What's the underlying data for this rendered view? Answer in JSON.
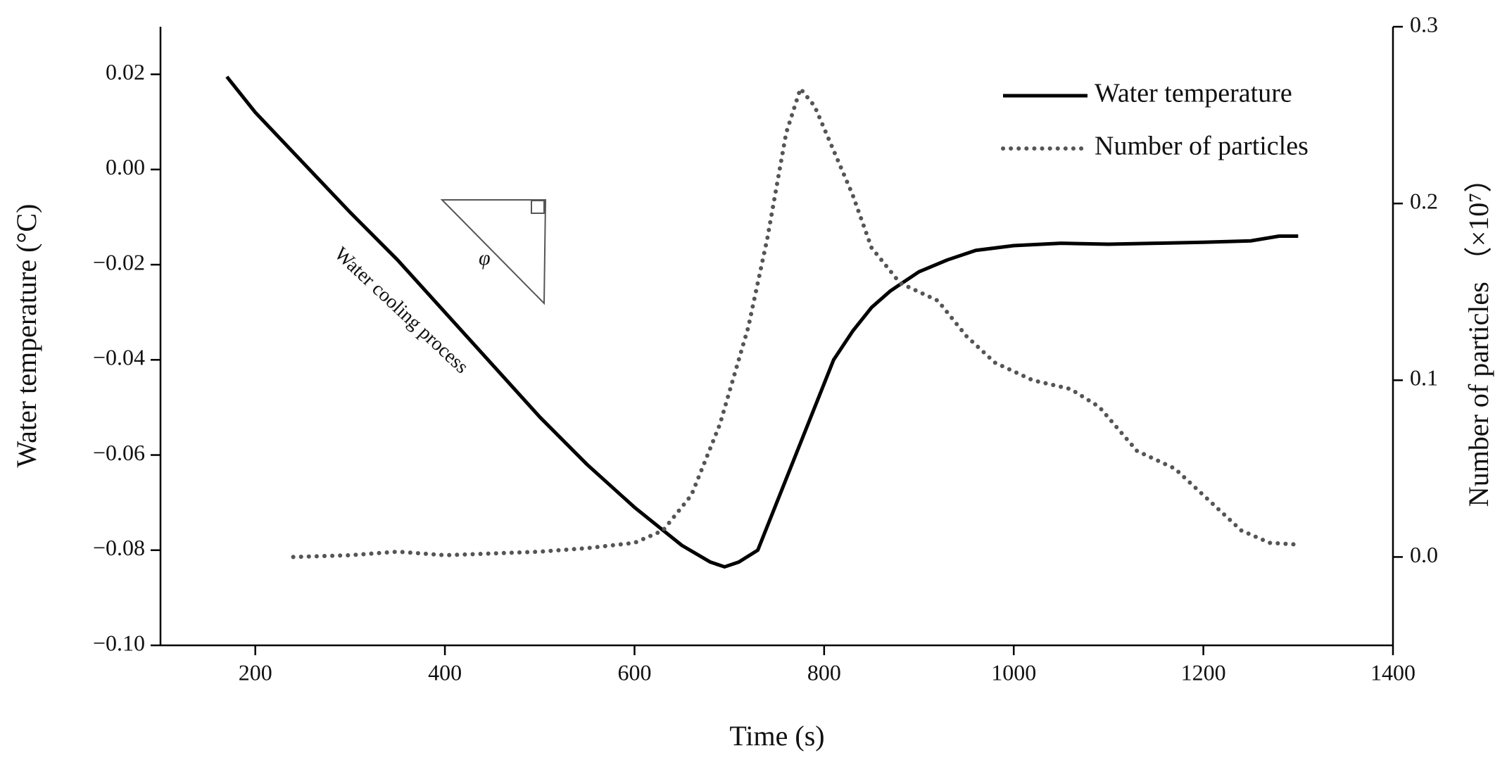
{
  "chart_data": {
    "type": "line",
    "xlabel": "Time (s)",
    "ylabel": "Water temperature (°C)",
    "y2label": "Number of particles （×10⁷）",
    "annotations": [
      "Water cooling process",
      "φ"
    ],
    "xlim": [
      100,
      1400
    ],
    "xticks": [
      200,
      400,
      600,
      800,
      1000,
      1200,
      1400
    ],
    "ylim": [
      -0.1,
      0.03
    ],
    "yticks": [
      {
        "value": -0.1,
        "label": "−0.10"
      },
      {
        "value": -0.08,
        "label": "−0.08"
      },
      {
        "value": -0.06,
        "label": "−0.06"
      },
      {
        "value": -0.04,
        "label": "−0.04"
      },
      {
        "value": -0.02,
        "label": "−0.02"
      },
      {
        "value": 0,
        "label": "0.00"
      },
      0.02
    ],
    "y2lim": [
      -0.05,
      0.3
    ],
    "y2ticks": [
      {
        "value": 0,
        "label": "0.0"
      },
      0.1,
      0.2,
      0.3
    ],
    "legend": "upper right",
    "series": [
      {
        "name": "Water temperature",
        "color": "#000000",
        "style": "solid",
        "x": [
          170,
          200,
          250,
          300,
          350,
          400,
          450,
          500,
          550,
          600,
          650,
          680,
          695,
          710,
          730,
          750,
          770,
          790,
          810,
          830,
          850,
          870,
          900,
          930,
          960,
          1000,
          1050,
          1100,
          1150,
          1200,
          1250,
          1280,
          1300
        ],
        "values": [
          0.0195,
          0.012,
          0.0015,
          -0.009,
          -0.019,
          -0.03,
          -0.041,
          -0.052,
          -0.062,
          -0.071,
          -0.079,
          -0.0825,
          -0.0835,
          -0.0825,
          -0.08,
          -0.07,
          -0.06,
          -0.05,
          -0.04,
          -0.034,
          -0.029,
          -0.0255,
          -0.0215,
          -0.019,
          -0.017,
          -0.016,
          -0.0155,
          -0.0157,
          -0.0155,
          -0.0153,
          -0.015,
          -0.014,
          -0.014
        ]
      },
      {
        "name": "Number of particles",
        "color": "#555555",
        "style": "dotted",
        "axis": "y2",
        "x": [
          240,
          300,
          350,
          400,
          450,
          500,
          550,
          600,
          630,
          660,
          690,
          720,
          740,
          760,
          775,
          790,
          810,
          830,
          850,
          880,
          920,
          950,
          980,
          1020,
          1060,
          1090,
          1130,
          1170,
          1200,
          1240,
          1270,
          1300
        ],
        "values": [
          0.0,
          0.001,
          0.003,
          0.001,
          0.002,
          0.003,
          0.005,
          0.008,
          0.015,
          0.035,
          0.075,
          0.13,
          0.18,
          0.24,
          0.265,
          0.255,
          0.23,
          0.205,
          0.175,
          0.155,
          0.145,
          0.125,
          0.11,
          0.1,
          0.095,
          0.085,
          0.06,
          0.05,
          0.035,
          0.015,
          0.008,
          0.007
        ]
      }
    ]
  }
}
